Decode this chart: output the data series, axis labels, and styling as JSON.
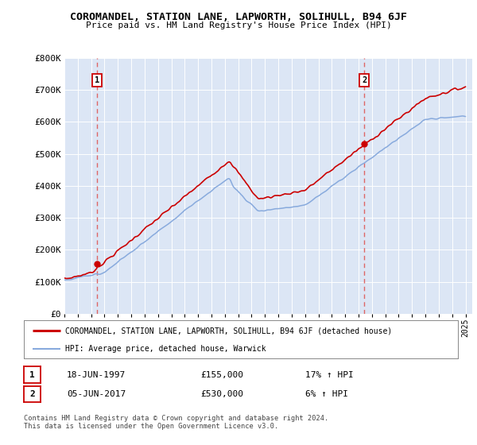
{
  "title": "COROMANDEL, STATION LANE, LAPWORTH, SOLIHULL, B94 6JF",
  "subtitle": "Price paid vs. HM Land Registry's House Price Index (HPI)",
  "ylabel_ticks": [
    "£0",
    "£100K",
    "£200K",
    "£300K",
    "£400K",
    "£500K",
    "£600K",
    "£700K",
    "£800K"
  ],
  "ytick_vals": [
    0,
    100000,
    200000,
    300000,
    400000,
    500000,
    600000,
    700000,
    800000
  ],
  "ylim": [
    0,
    800000
  ],
  "xlim_start": 1995.0,
  "xlim_end": 2025.5,
  "bg_color": "#dce6f5",
  "grid_color": "#ffffff",
  "sale1_x": 1997.46,
  "sale1_y": 155000,
  "sale1_label": "1",
  "sale1_date": "18-JUN-1997",
  "sale1_price": "£155,000",
  "sale1_hpi": "17% ↑ HPI",
  "sale2_x": 2017.43,
  "sale2_y": 530000,
  "sale2_label": "2",
  "sale2_date": "05-JUN-2017",
  "sale2_price": "£530,000",
  "sale2_hpi": "6% ↑ HPI",
  "legend_line1": "COROMANDEL, STATION LANE, LAPWORTH, SOLIHULL, B94 6JF (detached house)",
  "legend_line2": "HPI: Average price, detached house, Warwick",
  "footer1": "Contains HM Land Registry data © Crown copyright and database right 2024.",
  "footer2": "This data is licensed under the Open Government Licence v3.0.",
  "red_color": "#cc0000",
  "blue_color": "#88aadd",
  "dashed_color": "#dd6666"
}
